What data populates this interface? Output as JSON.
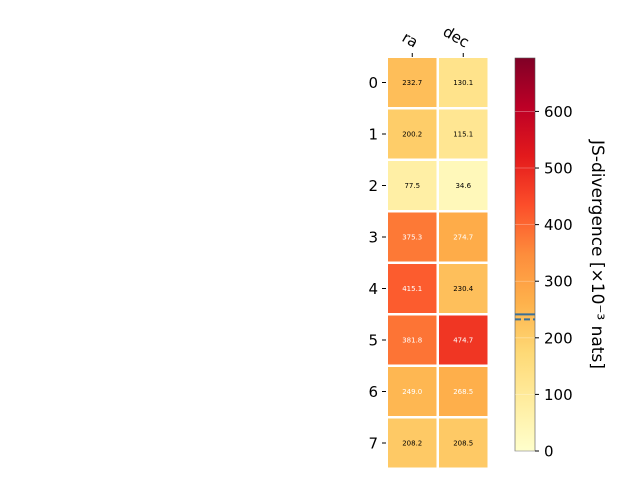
{
  "chart_data": {
    "type": "heatmap",
    "columns": [
      "ra",
      "dec"
    ],
    "rows": [
      "0",
      "1",
      "2",
      "3",
      "4",
      "5",
      "6",
      "7"
    ],
    "values": [
      [
        232.7,
        130.1
      ],
      [
        200.2,
        115.1
      ],
      [
        77.5,
        34.6
      ],
      [
        375.3,
        274.7
      ],
      [
        415.1,
        230.4
      ],
      [
        381.8,
        474.7
      ],
      [
        249.0,
        268.5
      ],
      [
        208.2,
        208.5
      ]
    ],
    "value_labels": [
      [
        "232.7",
        "130.1"
      ],
      [
        "200.2",
        "115.1"
      ],
      [
        "77.5",
        "34.6"
      ],
      [
        "375.3",
        "274.7"
      ],
      [
        "415.1",
        "230.4"
      ],
      [
        "381.8",
        "474.7"
      ],
      [
        "249.0",
        "268.5"
      ],
      [
        "208.2",
        "208.5"
      ]
    ],
    "colormap": "YlOrRd",
    "colorbar": {
      "range": [
        0,
        694.4
      ],
      "ticks": [
        0,
        100,
        200,
        300,
        400,
        500,
        600
      ],
      "tick_labels": [
        "0",
        "100",
        "200",
        "300",
        "400",
        "500",
        "600"
      ],
      "label": "JS-divergence [×10⁻³ nats]",
      "markers": [
        {
          "value": 241.5,
          "style": "solid",
          "color": "#3b6f96"
        },
        {
          "value": 232.5,
          "style": "dashed",
          "color": "#3b6f96"
        }
      ]
    }
  }
}
